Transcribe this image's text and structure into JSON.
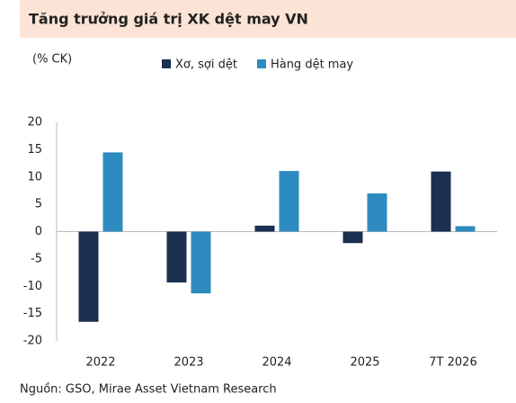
{
  "chart_data": {
    "type": "bar",
    "title": "Tăng trưởng giá trị XK dệt may VN",
    "y_label": "(% CK)",
    "categories": [
      "2022",
      "2023",
      "2024",
      "2025",
      "7T 2026"
    ],
    "series": [
      {
        "name": "Xơ, sợi dệt",
        "color": "#1b2f50",
        "values": [
          -16.5,
          -9.3,
          1.1,
          -2.1,
          11.0
        ]
      },
      {
        "name": "Hàng dệt may",
        "color": "#2e8bc0",
        "values": [
          14.5,
          -11.3,
          11.1,
          7.0,
          1.0
        ]
      }
    ],
    "ylim": [
      -20,
      20
    ],
    "yticks": [
      -20,
      -15,
      -10,
      -5,
      0,
      5,
      10,
      15,
      20
    ],
    "source": "Nguồn: GSO, Mirae Asset Vietnam Research"
  }
}
